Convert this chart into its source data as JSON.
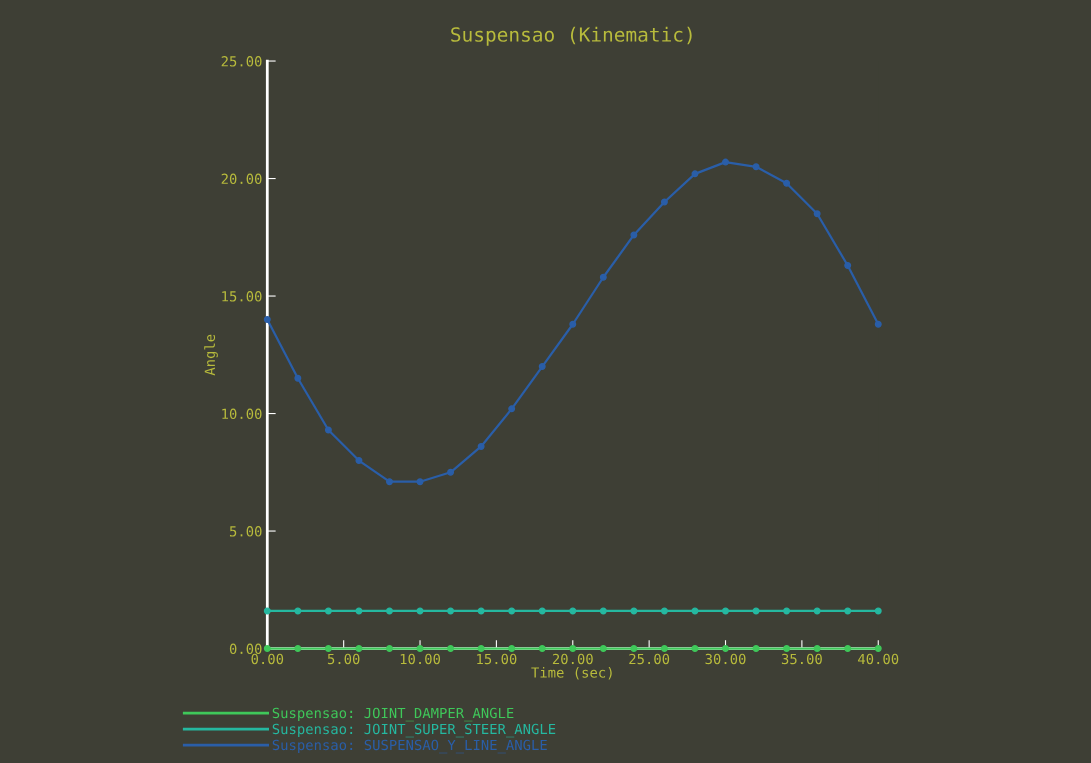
{
  "chart_data": {
    "type": "line",
    "title": "Suspensao (Kinematic)",
    "xlabel": "Time (sec)",
    "ylabel": "Angle",
    "x": [
      0,
      2,
      4,
      6,
      8,
      10,
      12,
      14,
      16,
      18,
      20,
      22,
      24,
      26,
      28,
      30,
      32,
      34,
      36,
      38,
      40
    ],
    "series": [
      {
        "name": "Suspensao: JOINT_DAMPER_ANGLE",
        "color": "#3fc85a",
        "values": [
          0,
          0,
          0,
          0,
          0,
          0,
          0,
          0,
          0,
          0,
          0,
          0,
          0,
          0,
          0,
          0,
          0,
          0,
          0,
          0,
          0
        ]
      },
      {
        "name": "Suspensao: JOINT_SUPER_STEER_ANGLE",
        "color": "#25b8a0",
        "values": [
          1.6,
          1.6,
          1.6,
          1.6,
          1.6,
          1.6,
          1.6,
          1.6,
          1.6,
          1.6,
          1.6,
          1.6,
          1.6,
          1.6,
          1.6,
          1.6,
          1.6,
          1.6,
          1.6,
          1.6,
          1.6
        ]
      },
      {
        "name": "Suspensao: SUSPENSAO_Y_LINE_ANGLE",
        "color": "#2a5ea8",
        "values": [
          14.0,
          11.5,
          9.3,
          8.0,
          7.1,
          7.1,
          7.5,
          8.6,
          10.2,
          12.0,
          13.8,
          15.8,
          17.6,
          19.0,
          20.2,
          20.7,
          20.5,
          19.8,
          18.5,
          16.3,
          13.8
        ]
      }
    ],
    "xlim": [
      0,
      40
    ],
    "ylim": [
      0,
      25
    ],
    "xticks": [
      {
        "value": 0,
        "label": "0.00"
      },
      {
        "value": 5,
        "label": "5.00"
      },
      {
        "value": 10,
        "label": "10.00"
      },
      {
        "value": 15,
        "label": "15.00"
      },
      {
        "value": 20,
        "label": "20.00"
      },
      {
        "value": 25,
        "label": "25.00"
      },
      {
        "value": 30,
        "label": "30.00"
      },
      {
        "value": 35,
        "label": "35.00"
      },
      {
        "value": 40,
        "label": "40.00"
      }
    ],
    "yticks": [
      {
        "value": 0,
        "label": "0.00"
      },
      {
        "value": 5,
        "label": "5.00"
      },
      {
        "value": 10,
        "label": "10.00"
      },
      {
        "value": 15,
        "label": "15.00"
      },
      {
        "value": 20,
        "label": "20.00"
      },
      {
        "value": 25,
        "label": "25.00"
      }
    ],
    "grid": false,
    "legend": "bottom left",
    "marker": "circle",
    "line_style": "solid"
  }
}
